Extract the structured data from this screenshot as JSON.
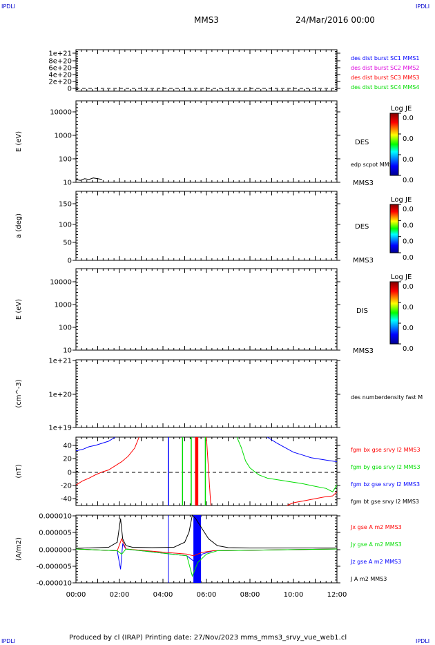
{
  "corners": {
    "tl": "IPDLI",
    "tr": "IPDLI",
    "bl": "IPDLI",
    "br": "IPDLI"
  },
  "header": {
    "spacecraft": "MMS3",
    "date": "24/Mar/2016 00:00"
  },
  "footer": {
    "text": "Produced by cl (IRAP)   Printing date: 27/Nov/2023   mms_mms3_srvy_vue_web1.cl"
  },
  "x_ticks": [
    "00:00",
    "02:00",
    "04:00",
    "06:00",
    "08:00",
    "10:00",
    "12:00"
  ],
  "colorbars": [
    {
      "title": "Log JE",
      "labels": [
        "0.0",
        "0.0",
        "0.0",
        "0.0"
      ]
    },
    {
      "title": "Log JE",
      "labels": [
        "0.0",
        "0.0",
        "0.0",
        "0.0"
      ]
    },
    {
      "title": "Log JE",
      "labels": [
        "0.0",
        "0.0",
        "0.0",
        "0.0"
      ]
    }
  ],
  "colors": {
    "blue": "#0000ff",
    "green": "#00dd00",
    "red": "#ff0000",
    "magenta": "#dd00dd",
    "black": "#000000"
  },
  "chart_data": [
    {
      "type": "line",
      "panel": "des-dist-burst",
      "ylabel": "",
      "yticks": [
        "1e+21",
        "8e+20",
        "6e+20",
        "4e+20",
        "2e+20",
        "0"
      ],
      "xlim": [
        "00:00",
        "12:00"
      ],
      "legend": [
        {
          "text": "des dist burst SC1 MMS1",
          "color": "#0000ff"
        },
        {
          "text": "des dist burst SC2 MMS2",
          "color": "#dd00dd"
        },
        {
          "text": "des dist burst SC3 MMS3",
          "color": "#ff0000"
        },
        {
          "text": "des dist burst SC4 MMS4",
          "color": "#00dd00"
        }
      ]
    },
    {
      "type": "heatmap",
      "panel": "des-energy",
      "ylabel": "E (eV)",
      "yscale": "log",
      "ylim": [
        10,
        20000
      ],
      "yticks": [
        "10000",
        "1000",
        "100",
        "10"
      ],
      "label": "DES",
      "sublabel": "MMS3",
      "overlay_label": "edp scpot MMS3",
      "overlay_series": {
        "name": "edp scpot MMS3",
        "x_hours": [
          0.0,
          0.2,
          0.4,
          0.6,
          0.8,
          1.0,
          1.2
        ],
        "y": [
          13,
          12,
          14,
          13,
          15,
          14,
          13
        ]
      }
    },
    {
      "type": "heatmap",
      "panel": "des-pitch",
      "ylabel": "a (deg)",
      "ylim": [
        0,
        180
      ],
      "yticks": [
        "150",
        "100",
        "50",
        "0"
      ],
      "label": "DES",
      "sublabel": "MMS3"
    },
    {
      "type": "heatmap",
      "panel": "dis-energy",
      "ylabel": "E (eV)",
      "yscale": "log",
      "ylim": [
        10,
        20000
      ],
      "yticks": [
        "10000",
        "1000",
        "100",
        "10"
      ],
      "label": "DIS",
      "sublabel": "MMS3"
    },
    {
      "type": "line",
      "panel": "density",
      "ylabel": "(cm^-3)",
      "yscale": "log",
      "yticks": [
        "1e+21",
        "1e+20",
        "1e+19"
      ],
      "legend": [
        {
          "text": "des numberdensity fast M",
          "color": "#000000"
        }
      ]
    },
    {
      "type": "line",
      "panel": "fgm",
      "ylabel": "(nT)",
      "ylim": [
        -50,
        50
      ],
      "yticks": [
        "40",
        "20",
        "0",
        "-20",
        "-40"
      ],
      "legend": [
        {
          "text": "fgm bx gse srvy l2 MMS3",
          "color": "#ff0000"
        },
        {
          "text": "fgm by gse srvy l2 MMS3",
          "color": "#00dd00"
        },
        {
          "text": "fgm bz gse srvy l2 MMS3",
          "color": "#0000ff"
        },
        {
          "text": "fgm bt gse srvy l2 MMS3",
          "color": "#000000"
        }
      ],
      "series": [
        {
          "name": "fgm bz gse srvy l2 MMS3",
          "color": "#0000ff",
          "segments": [
            {
              "x": [
                0.0,
                0.3,
                0.6,
                0.9,
                1.2,
                1.5,
                1.8
              ],
              "y": [
                30,
                32,
                36,
                38,
                41,
                44,
                50
              ]
            },
            {
              "x": [
                8.8,
                9.2,
                9.6,
                10.0,
                10.4,
                10.8,
                11.2,
                11.6,
                12.0
              ],
              "y": [
                50,
                42,
                35,
                28,
                24,
                20,
                18,
                16,
                14
              ]
            }
          ]
        },
        {
          "name": "fgm bx gse srvy l2 MMS3",
          "color": "#ff0000",
          "segments": [
            {
              "x": [
                0.0,
                0.3,
                0.6,
                0.9,
                1.2,
                1.5,
                1.8,
                2.1,
                2.4,
                2.7,
                2.9
              ],
              "y": [
                -20,
                -14,
                -10,
                -5,
                -1,
                2,
                8,
                14,
                22,
                34,
                50
              ]
            },
            {
              "x": [
                6.0,
                6.1,
                6.2
              ],
              "y": [
                50,
                0,
                -50
              ]
            },
            {
              "x": [
                9.7,
                10.0,
                10.5,
                11.0,
                11.5,
                11.8,
                12.0
              ],
              "y": [
                -50,
                -46,
                -43,
                -40,
                -37,
                -36,
                -30
              ]
            }
          ]
        },
        {
          "name": "fgm by gse srvy l2 MMS3",
          "color": "#00dd00",
          "segments": [
            {
              "x": [
                7.4,
                7.6,
                7.8,
                8.0,
                8.4,
                8.8,
                9.2,
                9.8,
                10.4,
                11.0,
                11.5,
                11.8,
                12.0
              ],
              "y": [
                50,
                35,
                15,
                5,
                -5,
                -10,
                -12,
                -15,
                -18,
                -22,
                -25,
                -30,
                -20
              ]
            }
          ]
        }
      ],
      "vlines": [
        {
          "x": 4.25,
          "color": "#0000ff"
        },
        {
          "x": 4.9,
          "color": "#00dd00"
        },
        {
          "x": 5.3,
          "color": "#00dd00"
        },
        {
          "x": 5.5,
          "color": "#ff0000"
        },
        {
          "x": 5.6,
          "color": "#ff0000"
        },
        {
          "x": 5.95,
          "color": "#00dd00"
        }
      ]
    },
    {
      "type": "line",
      "panel": "current",
      "ylabel": "(A/m2)",
      "ylim": [
        -1e-05,
        1e-05
      ],
      "yticks": [
        "0.000010",
        "0.000005",
        "0.000000",
        "-0.000005",
        "-0.000010"
      ],
      "legend": [
        {
          "text": "Jx gse A m2 MMS3",
          "color": "#ff0000"
        },
        {
          "text": "Jy gse A m2 MMS3",
          "color": "#00dd00"
        },
        {
          "text": "Jz gse A m2 MMS3",
          "color": "#0000ff"
        },
        {
          "text": "J A m2 MMS3",
          "color": "#000000"
        }
      ],
      "series": [
        {
          "name": "J A m2 MMS3",
          "color": "#000000",
          "x": [
            0.0,
            1.5,
            1.9,
            2.05,
            2.15,
            2.3,
            2.6,
            3.5,
            4.5,
            5.0,
            5.2,
            5.35,
            5.5,
            5.8,
            6.1,
            6.5,
            7.0,
            8.0,
            12.0
          ],
          "y": [
            2e-07,
            5e-07,
            2e-06,
            9e-06,
            3e-06,
            1e-06,
            5e-07,
            4e-07,
            5e-07,
            2e-06,
            5e-06,
            1e-05,
            9e-06,
            6e-06,
            3e-06,
            1e-06,
            4e-07,
            3e-07,
            3e-07
          ]
        },
        {
          "name": "Jz gse A m2 MMS3",
          "color": "#0000ff",
          "x": [
            0.0,
            1.9,
            2.05,
            2.15,
            2.3,
            5.1,
            5.3,
            5.5,
            5.8,
            6.3,
            12.0
          ],
          "y": [
            0.0,
            -5e-07,
            -6e-06,
            1.5e-06,
            0.0,
            -2e-06,
            -3e-06,
            -4e-06,
            -1.5e-06,
            -5e-07,
            0.0
          ]
        },
        {
          "name": "Jx gse A m2 MMS3",
          "color": "#ff0000",
          "x": [
            0.0,
            1.9,
            2.1,
            2.3,
            5.1,
            5.4,
            5.8,
            6.3,
            12.0
          ],
          "y": [
            0.0,
            -5e-07,
            3e-06,
            0.0,
            -1.5e-06,
            -2e-06,
            -1e-06,
            -5e-07,
            0.0
          ]
        },
        {
          "name": "Jy gse A m2 MMS3",
          "color": "#00dd00",
          "x": [
            0.0,
            1.9,
            2.1,
            2.3,
            5.1,
            5.35,
            5.6,
            6.0,
            6.5,
            12.0
          ],
          "y": [
            0.0,
            -5e-07,
            -1.5e-06,
            0.0,
            -2e-06,
            -8e-06,
            -4e-06,
            -1.5e-06,
            -5e-07,
            0.0
          ]
        }
      ],
      "vlines": [
        {
          "x": 4.25,
          "color": "#0000ff"
        }
      ],
      "shaded": {
        "x": [
          5.4,
          5.75
        ],
        "color": "#0000ff"
      }
    }
  ]
}
